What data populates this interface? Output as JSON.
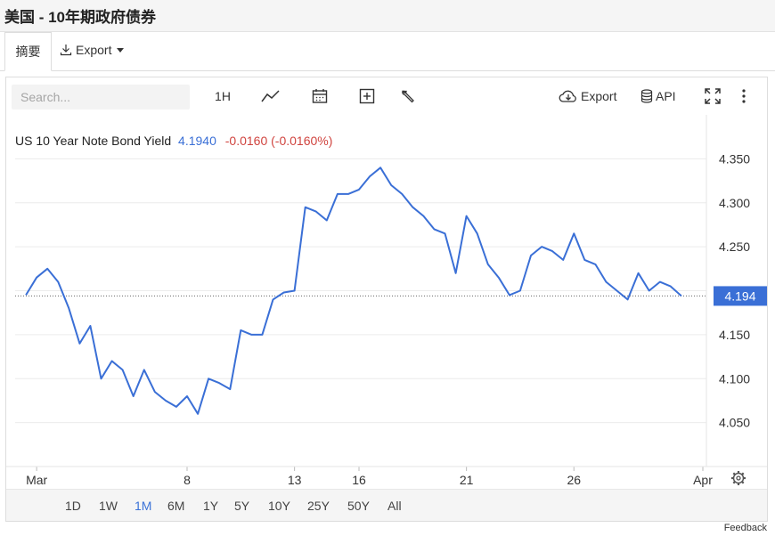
{
  "header": {
    "title": "美国 - 10年期政府债券"
  },
  "tabs": {
    "summary_label": "摘要",
    "export_label": "Export"
  },
  "toolbar": {
    "search_placeholder": "Search...",
    "interval_label": "1H",
    "export_label": "Export",
    "api_label": "API",
    "icons": [
      "line-chart-icon",
      "calendar-icon",
      "plus-box-icon",
      "wrench-icon",
      "cloud-download-icon",
      "database-icon",
      "fullscreen-icon",
      "more-vertical-icon",
      "settings-icon"
    ]
  },
  "legend": {
    "name": "US 10 Year Note Bond Yield",
    "value": "4.1940",
    "change": "-0.0160 (-0.0160%)"
  },
  "ranges": {
    "items": [
      "1D",
      "1W",
      "1M",
      "6M",
      "1Y",
      "5Y",
      "10Y",
      "25Y",
      "50Y",
      "All"
    ],
    "active": "1M"
  },
  "feedback_label": "Feedback",
  "colors": {
    "line": "#3a6fd6",
    "negative": "#d0443f",
    "accent": "#3a72d8"
  },
  "chart_data": {
    "type": "line",
    "series": [
      {
        "name": "US 10 Year Note Bond Yield",
        "x": [
          0.5,
          1,
          1.5,
          2,
          2.5,
          3,
          3.5,
          4,
          4.5,
          5,
          5.5,
          6,
          6.5,
          7,
          7.5,
          8,
          8.5,
          9,
          9.5,
          10,
          10.5,
          11,
          11.5,
          12,
          12.5,
          13,
          13.5,
          14,
          14.5,
          15,
          15.5,
          16,
          16.5,
          17,
          17.5,
          18,
          18.5,
          19,
          19.5,
          20,
          20.5,
          21,
          21.5,
          22,
          22.5,
          23,
          23.5,
          24,
          24.5,
          25,
          25.5,
          26,
          26.5,
          27,
          27.5,
          28,
          28.5,
          29,
          29.5,
          30,
          30.5,
          31
        ],
        "values": [
          4.195,
          4.215,
          4.225,
          4.21,
          4.18,
          4.14,
          4.16,
          4.1,
          4.12,
          4.11,
          4.08,
          4.11,
          4.085,
          4.075,
          4.068,
          4.08,
          4.06,
          4.1,
          4.095,
          4.088,
          4.155,
          4.15,
          4.15,
          4.19,
          4.198,
          4.2,
          4.295,
          4.29,
          4.28,
          4.31,
          4.31,
          4.315,
          4.33,
          4.34,
          4.32,
          4.31,
          4.295,
          4.285,
          4.27,
          4.265,
          4.22,
          4.285,
          4.265,
          4.23,
          4.215,
          4.195,
          4.2,
          4.24,
          4.25,
          4.245,
          4.235,
          4.265,
          4.235,
          4.23,
          4.21,
          4.2,
          4.19,
          4.22,
          4.2,
          4.21,
          4.205,
          4.194
        ]
      }
    ],
    "x_ticks": [
      {
        "label": "Mar",
        "x": 1
      },
      {
        "label": "8",
        "x": 8
      },
      {
        "label": "13",
        "x": 13
      },
      {
        "label": "16",
        "x": 16
      },
      {
        "label": "21",
        "x": 21
      },
      {
        "label": "26",
        "x": 26
      },
      {
        "label": "Apr",
        "x": 32
      }
    ],
    "y_ticks": [
      4.05,
      4.1,
      4.15,
      4.2,
      4.25,
      4.3,
      4.35
    ],
    "y_tick_labels": [
      "4.050",
      "4.100",
      "4.150",
      "",
      "4.250",
      "4.300",
      "4.350"
    ],
    "xlim": [
      0,
      32
    ],
    "ylim": [
      4.0,
      4.4
    ],
    "current_value": 4.194,
    "current_label": "4.194",
    "grid": true,
    "legend_position": "top-left"
  }
}
